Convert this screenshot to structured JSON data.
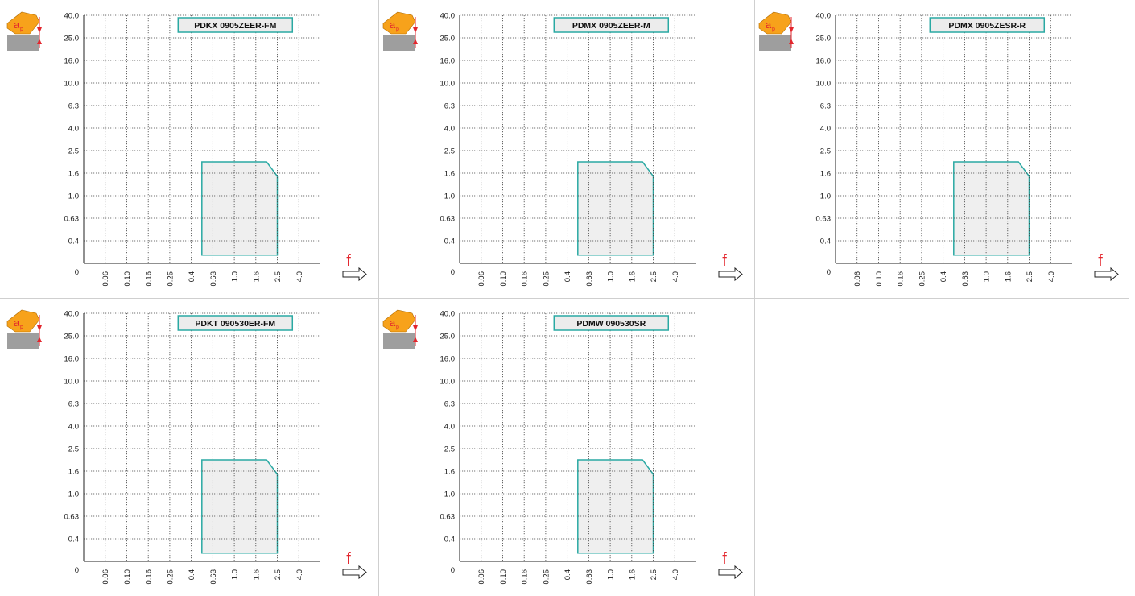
{
  "colors": {
    "region_stroke": "#2aa9a3",
    "region_fill": "#efefef",
    "grid": "#444444",
    "axis": "#222222",
    "icon_orange": "#f7a21b",
    "icon_red": "#e3262d",
    "icon_gray": "#9e9e9e",
    "label_fill": "#ececec",
    "f_color": "#e3262d"
  },
  "axis_labels": {
    "x_symbol": "f",
    "y_symbol_main": "a",
    "y_symbol_sub": "p"
  },
  "chart_data": [
    {
      "type": "area",
      "title": "PDKX 0905ZEER-FM",
      "xlabel": "f",
      "ylabel": "ap",
      "x_ticks": [
        "0.06",
        "0.10",
        "0.16",
        "0.25",
        "0.4",
        "0.63",
        "1.0",
        "1.6",
        "2.5",
        "4.0"
      ],
      "y_ticks": [
        "0",
        "0.4",
        "0.63",
        "1.0",
        "1.6",
        "2.5",
        "4.0",
        "6.3",
        "10.0",
        "16.0",
        "25.0",
        "40.0"
      ],
      "scale": "log",
      "grid": true,
      "region": [
        [
          0.5,
          0.3
        ],
        [
          0.5,
          2.0
        ],
        [
          2.0,
          2.0
        ],
        [
          2.5,
          1.5
        ],
        [
          2.5,
          0.3
        ]
      ]
    },
    {
      "type": "area",
      "title": "PDMX 0905ZEER-M",
      "xlabel": "f",
      "ylabel": "ap",
      "x_ticks": [
        "0.06",
        "0.10",
        "0.16",
        "0.25",
        "0.4",
        "0.63",
        "1.0",
        "1.6",
        "2.5",
        "4.0"
      ],
      "y_ticks": [
        "0",
        "0.4",
        "0.63",
        "1.0",
        "1.6",
        "2.5",
        "4.0",
        "6.3",
        "10.0",
        "16.0",
        "25.0",
        "40.0"
      ],
      "scale": "log",
      "grid": true,
      "region": [
        [
          0.5,
          0.3
        ],
        [
          0.5,
          2.0
        ],
        [
          2.0,
          2.0
        ],
        [
          2.5,
          1.5
        ],
        [
          2.5,
          0.3
        ]
      ]
    },
    {
      "type": "area",
      "title": "PDMX 0905ZESR-R",
      "xlabel": "f",
      "ylabel": "ap",
      "x_ticks": [
        "0.06",
        "0.10",
        "0.16",
        "0.25",
        "0.4",
        "0.63",
        "1.0",
        "1.6",
        "2.5",
        "4.0"
      ],
      "y_ticks": [
        "0",
        "0.4",
        "0.63",
        "1.0",
        "1.6",
        "2.5",
        "4.0",
        "6.3",
        "10.0",
        "16.0",
        "25.0",
        "40.0"
      ],
      "scale": "log",
      "grid": true,
      "region": [
        [
          0.5,
          0.3
        ],
        [
          0.5,
          2.0
        ],
        [
          2.0,
          2.0
        ],
        [
          2.5,
          1.5
        ],
        [
          2.5,
          0.3
        ]
      ]
    },
    {
      "type": "area",
      "title": "PDKT 090530ER-FM",
      "xlabel": "f",
      "ylabel": "ap",
      "x_ticks": [
        "0.06",
        "0.10",
        "0.16",
        "0.25",
        "0.4",
        "0.63",
        "1.0",
        "1.6",
        "2.5",
        "4.0"
      ],
      "y_ticks": [
        "0",
        "0.4",
        "0.63",
        "1.0",
        "1.6",
        "2.5",
        "4.0",
        "6.3",
        "10.0",
        "16.0",
        "25.0",
        "40.0"
      ],
      "scale": "log",
      "grid": true,
      "region": [
        [
          0.5,
          0.3
        ],
        [
          0.5,
          2.0
        ],
        [
          2.0,
          2.0
        ],
        [
          2.5,
          1.5
        ],
        [
          2.5,
          0.3
        ]
      ]
    },
    {
      "type": "area",
      "title": "PDMW 090530SR",
      "xlabel": "f",
      "ylabel": "ap",
      "x_ticks": [
        "0.06",
        "0.10",
        "0.16",
        "0.25",
        "0.4",
        "0.63",
        "1.0",
        "1.6",
        "2.5",
        "4.0"
      ],
      "y_ticks": [
        "0",
        "0.4",
        "0.63",
        "1.0",
        "1.6",
        "2.5",
        "4.0",
        "6.3",
        "10.0",
        "16.0",
        "25.0",
        "40.0"
      ],
      "scale": "log",
      "grid": true,
      "region": [
        [
          0.5,
          0.3
        ],
        [
          0.5,
          2.0
        ],
        [
          2.0,
          2.0
        ],
        [
          2.5,
          1.5
        ],
        [
          2.5,
          0.3
        ]
      ]
    }
  ]
}
